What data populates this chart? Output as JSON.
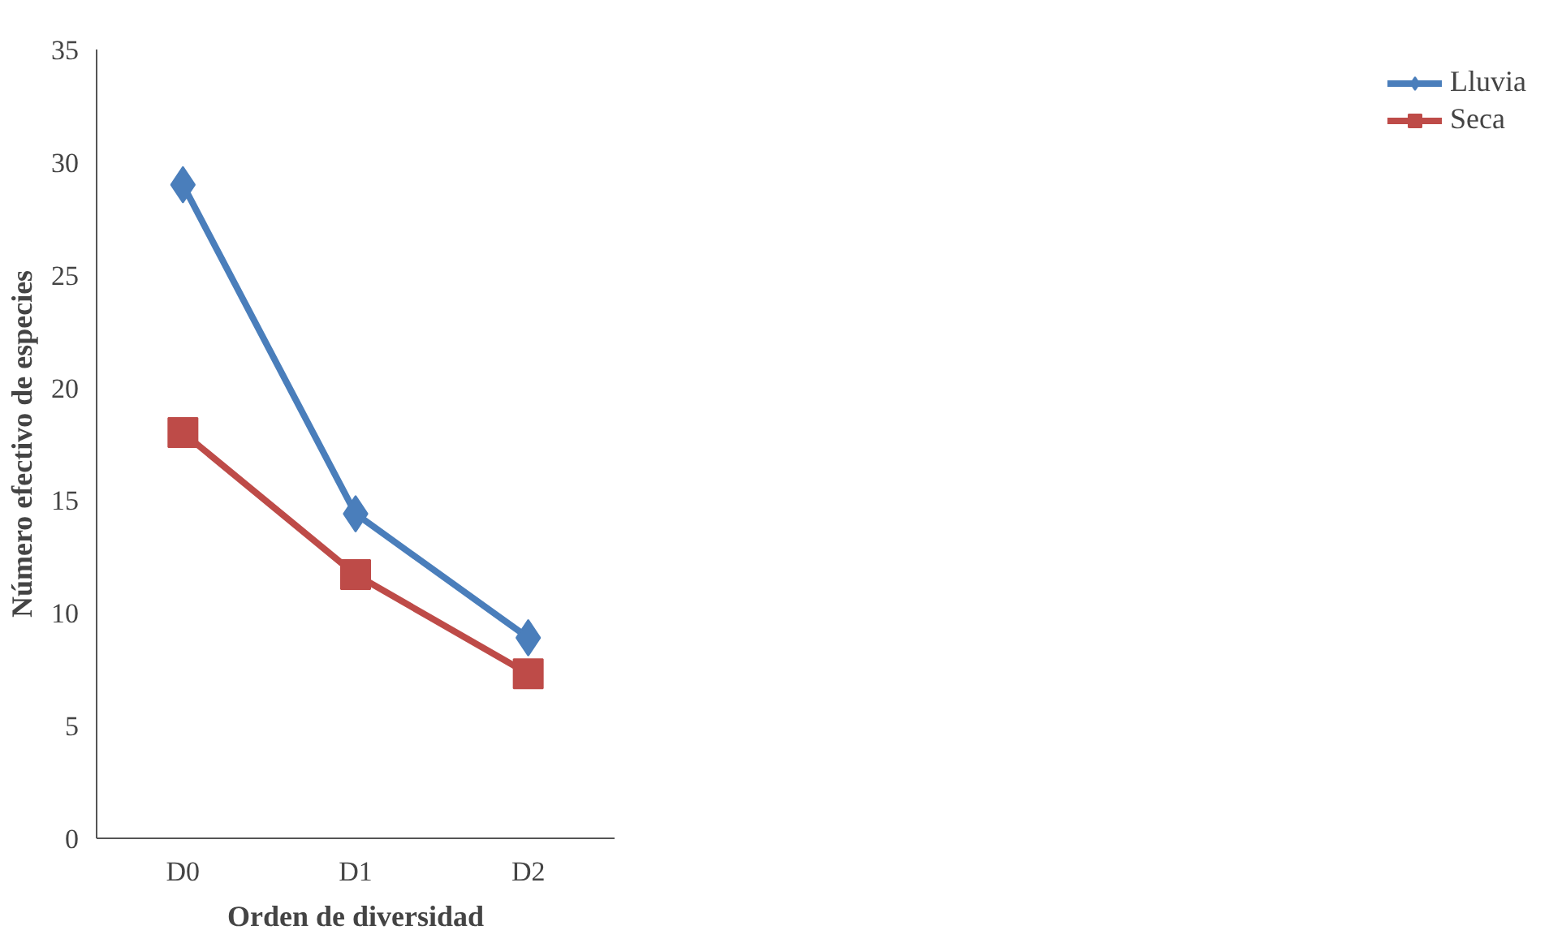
{
  "chart_data": {
    "type": "line",
    "categories": [
      "D0",
      "D1",
      "D2"
    ],
    "xlabel": "Orden de diversidad",
    "ylabel": "Número efectivo de especies",
    "ylim": [
      0,
      35
    ],
    "yticks": [
      0,
      5,
      10,
      15,
      20,
      25,
      30,
      35
    ],
    "grid": false,
    "legend": "right",
    "series": [
      {
        "name": "Lluvia",
        "color": "#4a7ebb",
        "marker": "diamond",
        "values": [
          29.0,
          14.4,
          8.9
        ]
      },
      {
        "name": "Seca",
        "color": "#be4b48",
        "marker": "square",
        "values": [
          18.0,
          11.7,
          7.3
        ]
      }
    ]
  }
}
